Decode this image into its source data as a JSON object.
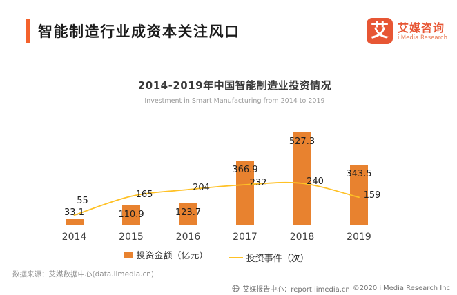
{
  "header": {
    "title": "智能制造行业成资本关注风口"
  },
  "logo": {
    "glyph": "艾",
    "name_cn": "艾媒咨询",
    "name_en": "iiMedia Research",
    "color": "#E75634"
  },
  "chart_data": {
    "type": "combo",
    "title": "2014-2019年中国智能制造业投资情况",
    "subtitle": "Investment in Smart Manufacturing from 2014 to 2019",
    "categories": [
      "2014",
      "2015",
      "2016",
      "2017",
      "2018",
      "2019"
    ],
    "series": [
      {
        "name": "投资金额（亿元）",
        "type": "bar",
        "color": "#E8822F",
        "values": [
          33.1,
          110.9,
          123.7,
          366.9,
          527.3,
          343.5
        ]
      },
      {
        "name": "投资事件（次）",
        "type": "line",
        "color": "#FFC125",
        "values": [
          55,
          165,
          204,
          232,
          240,
          159
        ]
      }
    ],
    "legend_position": "bottom",
    "grid": false,
    "bar_axis_range": [
      0,
      560
    ],
    "line_axis_range": [
      0,
      310
    ],
    "data_labels": true
  },
  "footer": {
    "source": "数据来源：艾媒数据中心(data.iimedia.cn)",
    "report_center": "艾媒报告中心：report.iimedia.cn",
    "copyright": "©2020  iiMedia Research Inc"
  }
}
